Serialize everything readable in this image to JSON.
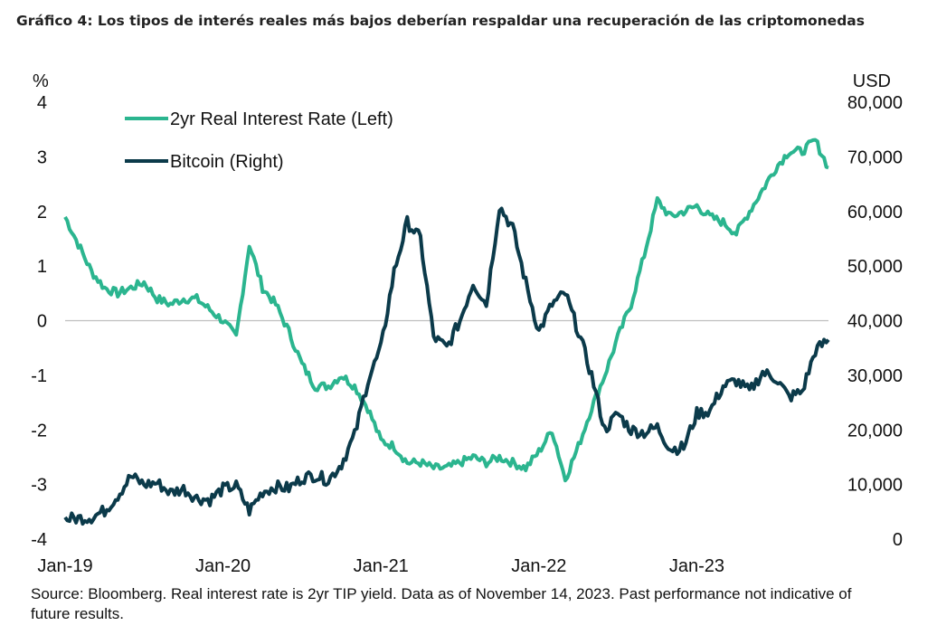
{
  "title": "Gráfico 4: Los tipos de interés reales más bajos deberían respaldar una recuperación de las criptomonedas",
  "source": "Source: Bloomberg. Real interest rate is 2yr TIP yield. Data as of November 14, 2023. Past performance not indicative of future results.",
  "colors": {
    "rate": "#2bb58f",
    "bitcoin": "#0b3a4a",
    "zero_line": "#bfbfbf"
  },
  "chart_data": {
    "type": "line",
    "left_axis": {
      "unit": "%",
      "ylim": [
        -4,
        4
      ],
      "ticks": [
        "4",
        "3",
        "2",
        "1",
        "0",
        "-1",
        "-2",
        "-3",
        "-4"
      ]
    },
    "right_axis": {
      "unit": "USD",
      "ylim": [
        0,
        80000
      ],
      "ticks": [
        "80,000",
        "70,000",
        "60,000",
        "50,000",
        "40,000",
        "30,000",
        "20,000",
        "10,000",
        "0"
      ]
    },
    "x_ticks": [
      "Jan-19",
      "Jan-20",
      "Jan-21",
      "Jan-22",
      "Jan-23"
    ],
    "x_range": [
      "2019-01",
      "2023-11"
    ],
    "legend": [
      {
        "label": "2yr Real Interest Rate (Left)",
        "series": "rate"
      },
      {
        "label": "Bitcoin (Right)",
        "series": "bitcoin"
      }
    ],
    "series": [
      {
        "name": "2yr Real Interest Rate (Left)",
        "axis": "left",
        "x": [
          "2019-01",
          "2019-02",
          "2019-03",
          "2019-04",
          "2019-05",
          "2019-06",
          "2019-07",
          "2019-08",
          "2019-09",
          "2019-10",
          "2019-11",
          "2019-12",
          "2020-01",
          "2020-02",
          "2020-03",
          "2020-04",
          "2020-05",
          "2020-06",
          "2020-07",
          "2020-08",
          "2020-09",
          "2020-10",
          "2020-11",
          "2020-12",
          "2021-01",
          "2021-02",
          "2021-03",
          "2021-04",
          "2021-05",
          "2021-06",
          "2021-07",
          "2021-08",
          "2021-09",
          "2021-10",
          "2021-11",
          "2021-12",
          "2022-01",
          "2022-02",
          "2022-03",
          "2022-04",
          "2022-05",
          "2022-06",
          "2022-07",
          "2022-08",
          "2022-09",
          "2022-10",
          "2022-11",
          "2022-12",
          "2023-01",
          "2023-02",
          "2023-03",
          "2023-04",
          "2023-05",
          "2023-06",
          "2023-07",
          "2023-08",
          "2023-09",
          "2023-10",
          "2023-11"
        ],
        "values": [
          1.9,
          1.4,
          0.9,
          0.6,
          0.5,
          0.6,
          0.7,
          0.4,
          0.3,
          0.4,
          0.4,
          0.2,
          0.0,
          -0.3,
          1.4,
          0.6,
          0.3,
          -0.2,
          -0.8,
          -1.2,
          -1.2,
          -1.0,
          -1.2,
          -1.6,
          -2.2,
          -2.3,
          -2.6,
          -2.6,
          -2.7,
          -2.7,
          -2.6,
          -2.5,
          -2.6,
          -2.5,
          -2.6,
          -2.7,
          -2.4,
          -2.0,
          -2.9,
          -2.3,
          -1.6,
          -1.0,
          -0.3,
          0.3,
          1.2,
          2.2,
          1.9,
          2.0,
          2.1,
          1.9,
          1.8,
          1.6,
          2.0,
          2.4,
          2.8,
          3.1,
          3.1,
          3.3,
          2.8
        ]
      },
      {
        "name": "Bitcoin (Right)",
        "axis": "right",
        "x": [
          "2019-01",
          "2019-02",
          "2019-03",
          "2019-04",
          "2019-05",
          "2019-06",
          "2019-07",
          "2019-08",
          "2019-09",
          "2019-10",
          "2019-11",
          "2019-12",
          "2020-01",
          "2020-02",
          "2020-03",
          "2020-04",
          "2020-05",
          "2020-06",
          "2020-07",
          "2020-08",
          "2020-09",
          "2020-10",
          "2020-11",
          "2020-12",
          "2021-01",
          "2021-02",
          "2021-03",
          "2021-04",
          "2021-05",
          "2021-06",
          "2021-07",
          "2021-08",
          "2021-09",
          "2021-10",
          "2021-11",
          "2021-12",
          "2022-01",
          "2022-02",
          "2022-03",
          "2022-04",
          "2022-05",
          "2022-06",
          "2022-07",
          "2022-08",
          "2022-09",
          "2022-10",
          "2022-11",
          "2022-12",
          "2023-01",
          "2023-02",
          "2023-03",
          "2023-04",
          "2023-05",
          "2023-06",
          "2023-07",
          "2023-08",
          "2023-09",
          "2023-10",
          "2023-11"
        ],
        "values": [
          3700,
          3800,
          4000,
          5200,
          8000,
          11500,
          10000,
          10300,
          8500,
          9200,
          7500,
          7200,
          9200,
          9700,
          5200,
          8700,
          9600,
          9300,
          11200,
          11700,
          10800,
          13800,
          19000,
          29000,
          35000,
          49000,
          58000,
          55000,
          37000,
          35000,
          40000,
          47000,
          43000,
          61000,
          57000,
          47000,
          38000,
          43000,
          45000,
          38000,
          30000,
          20000,
          23000,
          20000,
          19500,
          20500,
          16500,
          16800,
          23000,
          23500,
          28000,
          29000,
          27000,
          30500,
          29500,
          26000,
          27000,
          34500,
          36500
        ]
      }
    ]
  }
}
